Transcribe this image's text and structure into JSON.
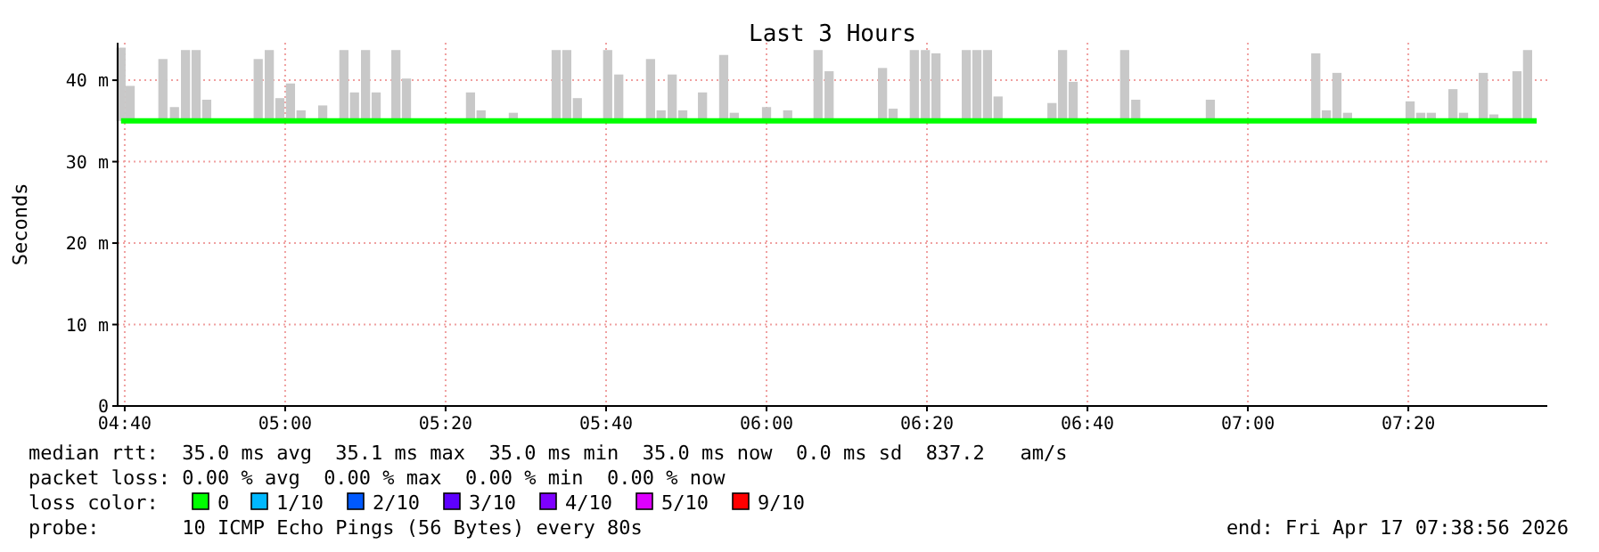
{
  "chart_data": {
    "type": "bar",
    "title": "Last 3 Hours",
    "ylabel": "Seconds",
    "xlim": [
      4.652,
      7.622
    ],
    "ylim": [
      0,
      44.6
    ],
    "xticks": [
      {
        "value": 4.6667,
        "label": "04:40"
      },
      {
        "value": 5,
        "label": "05:00"
      },
      {
        "value": 5.3333,
        "label": "05:20"
      },
      {
        "value": 5.6667,
        "label": "05:40"
      },
      {
        "value": 6,
        "label": "06:00"
      },
      {
        "value": 6.3333,
        "label": "06:20"
      },
      {
        "value": 6.6667,
        "label": "06:40"
      },
      {
        "value": 7,
        "label": "07:00"
      },
      {
        "value": 7.3333,
        "label": "07:20"
      }
    ],
    "yticks": [
      0,
      {
        "value": 10,
        "label": "10 m"
      },
      {
        "value": 20,
        "label": "20 m"
      },
      {
        "value": 30,
        "label": "30 m"
      },
      {
        "value": 40,
        "label": "40 m"
      }
    ],
    "grid": true,
    "legend": "bottom",
    "legend_title": "loss color:",
    "series": [
      {
        "color": "#c8c8c8",
        "base": [
          35,
          35,
          35,
          35,
          35,
          35,
          35,
          35,
          35,
          35,
          35,
          35,
          35,
          35,
          35,
          35,
          35,
          35,
          35,
          35,
          35,
          35,
          35,
          35,
          35,
          35,
          35,
          35,
          35,
          35,
          35,
          35,
          35,
          35,
          35,
          35,
          35,
          35,
          35,
          35,
          35,
          35,
          35,
          35,
          35,
          35,
          35,
          35,
          35,
          35,
          35,
          35,
          35,
          35,
          35,
          35,
          35,
          35,
          35,
          35,
          35,
          35,
          35,
          35,
          35,
          35
        ],
        "x": [
          4.659,
          4.678,
          4.746,
          4.77,
          4.793,
          4.815,
          4.837,
          4.944,
          4.967,
          4.989,
          5.011,
          5.033,
          5.078,
          5.122,
          5.144,
          5.167,
          5.189,
          5.23,
          5.252,
          5.385,
          5.407,
          5.474,
          5.563,
          5.585,
          5.607,
          5.67,
          5.693,
          5.759,
          5.781,
          5.804,
          5.826,
          5.867,
          5.911,
          5.933,
          6.0,
          6.044,
          6.107,
          6.13,
          6.241,
          6.263,
          6.307,
          6.33,
          6.352,
          6.415,
          6.437,
          6.459,
          6.481,
          6.593,
          6.615,
          6.637,
          6.744,
          6.767,
          6.922,
          7.141,
          7.163,
          7.185,
          7.207,
          7.337,
          7.359,
          7.381,
          7.426,
          7.448,
          7.489,
          7.511,
          7.559,
          7.581
        ],
        "values": [
          9.0,
          4.3,
          7.6,
          1.7,
          8.7,
          8.7,
          2.6,
          7.6,
          8.7,
          2.8,
          4.6,
          1.3,
          1.9,
          8.7,
          3.5,
          8.7,
          3.5,
          8.7,
          5.2,
          3.5,
          1.3,
          1.0,
          8.7,
          8.7,
          2.8,
          8.7,
          5.7,
          7.6,
          1.3,
          5.7,
          1.3,
          3.5,
          8.1,
          1.0,
          1.7,
          1.3,
          8.7,
          6.1,
          6.5,
          1.5,
          8.7,
          8.7,
          8.3,
          8.7,
          8.7,
          8.7,
          3.0,
          2.2,
          8.7,
          4.8,
          8.7,
          2.6,
          2.6,
          8.3,
          1.3,
          5.9,
          1.0,
          2.4,
          1.0,
          1.0,
          3.9,
          1.0,
          5.9,
          0.8,
          6.1,
          8.7
        ]
      },
      {
        "type": "line",
        "name": "0",
        "color": "#00ff00",
        "x": [
          4.659,
          7.6
        ],
        "values": [
          35.0,
          35.0
        ]
      },
      {
        "type": "line",
        "name": "1/10",
        "color": "#00b8ff"
      },
      {
        "type": "line",
        "name": "2/10",
        "color": "#0059ff"
      },
      {
        "type": "line",
        "name": "3/10",
        "color": "#5e00ff"
      },
      {
        "type": "line",
        "name": "4/10",
        "color": "#7e00ff"
      },
      {
        "type": "line",
        "name": "5/10",
        "color": "#dd00ff"
      },
      {
        "type": "line",
        "name": "9/10",
        "color": "#ff0000"
      }
    ],
    "annotations": [
      "median rtt:  35.0 ms avg  35.1 ms max  35.0 ms min  35.0 ms now  0.0 ms sd  837.2   am/s",
      "packet loss: 0.00 % avg  0.00 % max  0.00 % min  0.00 % now",
      "probe:       10 ICMP Echo Pings (56 Bytes) every 80s",
      "end: Fri Apr 17 07:38:56 2026"
    ]
  }
}
